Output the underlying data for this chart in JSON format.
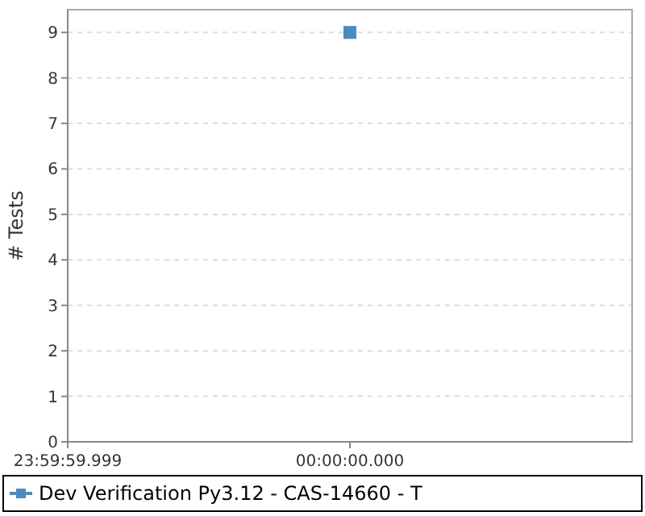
{
  "chart_data": {
    "type": "scatter",
    "ylabel": "# Tests",
    "categories": [
      "23:59:59.999",
      "00:00:00.000",
      null
    ],
    "series": [
      {
        "name": "Dev Verification Py3.12 - CAS-14660 - T",
        "color": "#4a8bc4",
        "values": [
          null,
          9,
          null
        ]
      }
    ],
    "ylim": [
      0,
      9.5
    ],
    "yticks": [
      0,
      1,
      2,
      3,
      4,
      5,
      6,
      7,
      8,
      9
    ],
    "grid": "y",
    "legend": "bottom",
    "marker": "square"
  }
}
